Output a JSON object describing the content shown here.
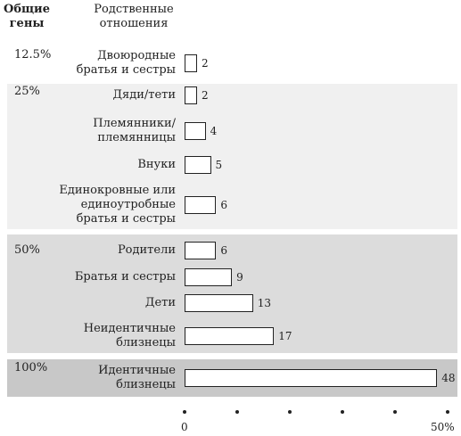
{
  "chart_data": {
    "type": "bar",
    "orientation": "horizontal",
    "header": {
      "shared_genes": "Общие\nгены",
      "relation": "Родственные\nотношения"
    },
    "groups": [
      {
        "name": "12.5%",
        "categories": [
          "Двоюродные\nбратья и сестры"
        ],
        "values": [
          2
        ]
      },
      {
        "name": "25%",
        "categories": [
          "Дяди/тети",
          "Племянники/\nплемянницы",
          "Внуки",
          "Единокровные или\nединоутробные\nбратья и сестры"
        ],
        "values": [
          2,
          4,
          5,
          6
        ]
      },
      {
        "name": "50%",
        "categories": [
          "Родители",
          "Братья и сестры",
          "Дети",
          "Неидентичные\nблизнецы"
        ],
        "values": [
          6,
          9,
          13,
          17
        ]
      },
      {
        "name": "100%",
        "categories": [
          "Идентичные\nблизнецы"
        ],
        "values": [
          48
        ]
      }
    ],
    "x_ticks": [
      "0",
      "50%"
    ],
    "xlim": [
      0,
      50
    ],
    "band_colors": {
      "12.5%": "#ffffff",
      "25%": "#f0f0f0",
      "50%": "#dcdcdc",
      "100%": "#c8c8c8"
    }
  }
}
